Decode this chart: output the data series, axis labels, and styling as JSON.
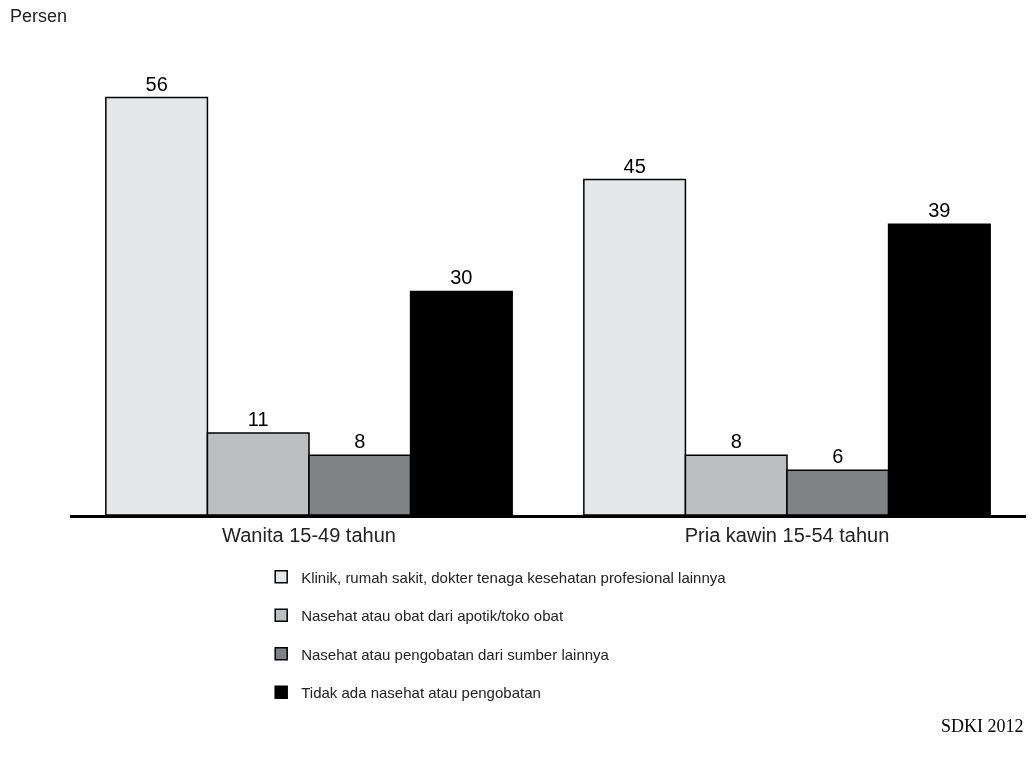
{
  "chart_data": {
    "type": "bar",
    "ylabel": "Persen",
    "categories": [
      "Wanita 15-49 tahun",
      "Pria kawin 15-54 tahun"
    ],
    "series": [
      {
        "name": "Klinik, rumah sakit, dokter tenaga kesehatan profesional lainnya",
        "color": "#e6e7e8",
        "values": [
          56,
          45
        ]
      },
      {
        "name": "Nasehat atau obat dari apotik/toko obat",
        "color": "#bcbec0",
        "values": [
          11,
          8
        ]
      },
      {
        "name": "Nasehat atau pengobatan dari sumber lainnya",
        "color": "#808285",
        "values": [
          8,
          6
        ]
      },
      {
        "name": "Tidak ada nasehat atau pengobatan",
        "color": "#000000",
        "values": [
          30,
          39
        ]
      }
    ],
    "data_labels": true,
    "legend": "bottom",
    "grid": false,
    "annotations": [
      "SDKI 2012"
    ]
  }
}
